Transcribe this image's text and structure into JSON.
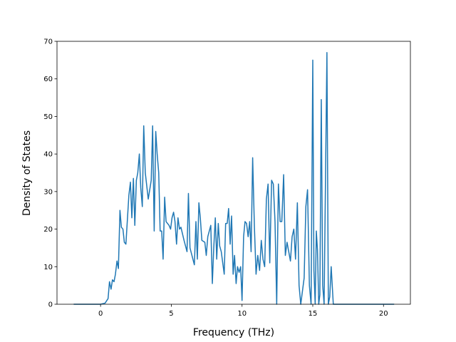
{
  "chart_data": {
    "type": "line",
    "xlabel": "Frequency (THz)",
    "ylabel": "Density of States",
    "color": "#1f77b4",
    "xlim": [
      -3.08,
      21.9
    ],
    "ylim": [
      0,
      70
    ],
    "xticks": [
      0,
      5,
      10,
      15,
      20
    ],
    "yticks": [
      0,
      10,
      20,
      30,
      40,
      50,
      60,
      70
    ],
    "x": [
      -1.9,
      0,
      0.32,
      0.53,
      0.63,
      0.74,
      0.84,
      0.95,
      1.05,
      1.16,
      1.26,
      1.37,
      1.47,
      1.58,
      1.68,
      1.79,
      2.0,
      2.11,
      2.21,
      2.32,
      2.42,
      2.53,
      2.63,
      2.74,
      2.84,
      2.95,
      3.05,
      3.16,
      3.37,
      3.58,
      3.68,
      3.79,
      3.9,
      4.0,
      4.11,
      4.21,
      4.32,
      4.42,
      4.53,
      4.63,
      4.84,
      4.95,
      5.05,
      5.16,
      5.26,
      5.37,
      5.47,
      5.58,
      5.68,
      5.9,
      6.11,
      6.21,
      6.32,
      6.63,
      6.74,
      6.84,
      6.95,
      7.05,
      7.16,
      7.37,
      7.47,
      7.58,
      7.79,
      7.9,
      8.0,
      8.11,
      8.21,
      8.32,
      8.42,
      8.53,
      8.74,
      8.84,
      8.95,
      9.05,
      9.16,
      9.26,
      9.37,
      9.47,
      9.58,
      9.68,
      9.79,
      9.9,
      10.0,
      10.11,
      10.21,
      10.32,
      10.43,
      10.54,
      10.64,
      10.75,
      10.87,
      10.99,
      11.11,
      11.24,
      11.36,
      11.48,
      11.6,
      11.72,
      11.84,
      11.96,
      12.09,
      12.21,
      12.33,
      12.45,
      12.57,
      12.69,
      12.81,
      12.94,
      13.06,
      13.18,
      13.3,
      13.42,
      13.54,
      13.66,
      13.78,
      13.91,
      14.03,
      14.15,
      14.39,
      14.51,
      14.63,
      14.76,
      14.88,
      15.0,
      15.08,
      15.17,
      15.25,
      15.33,
      15.42,
      15.5,
      15.6,
      15.7,
      15.8,
      16.0,
      16.1,
      16.2,
      16.3,
      16.45,
      20.75
    ],
    "values": [
      0,
      0,
      0.3,
      1.5,
      6,
      4,
      6.5,
      6,
      8,
      11.5,
      9.5,
      25,
      20.5,
      20,
      16.5,
      16,
      29,
      32.5,
      23,
      33.5,
      21,
      33,
      35,
      40,
      31,
      26,
      47.5,
      35,
      28,
      33,
      47.5,
      19.5,
      46,
      40,
      35,
      19.5,
      19.5,
      12,
      28.5,
      22,
      21,
      20,
      23,
      24.5,
      22,
      16,
      23,
      20,
      20.5,
      17,
      14,
      29.5,
      15,
      10.5,
      22,
      12,
      27,
      23,
      17,
      16.5,
      13,
      18,
      21,
      5.5,
      15,
      23,
      12,
      21.5,
      15.5,
      14,
      8,
      21.5,
      21.5,
      25.5,
      16,
      23.5,
      8,
      13,
      5.5,
      10,
      8.5,
      10,
      1,
      18,
      22,
      21.5,
      18,
      22,
      14,
      39,
      21,
      8,
      13,
      9,
      17,
      12,
      10,
      28,
      32,
      11,
      33,
      32,
      22,
      0,
      32,
      22,
      22,
      34.5,
      13,
      16.5,
      14,
      11.5,
      18,
      20,
      12,
      27,
      5,
      0,
      7,
      26,
      30.5,
      5,
      0,
      65,
      9,
      0,
      19.5,
      14.5,
      0,
      2.5,
      54.5,
      5,
      0,
      67,
      0,
      2,
      10,
      0,
      0
    ]
  }
}
